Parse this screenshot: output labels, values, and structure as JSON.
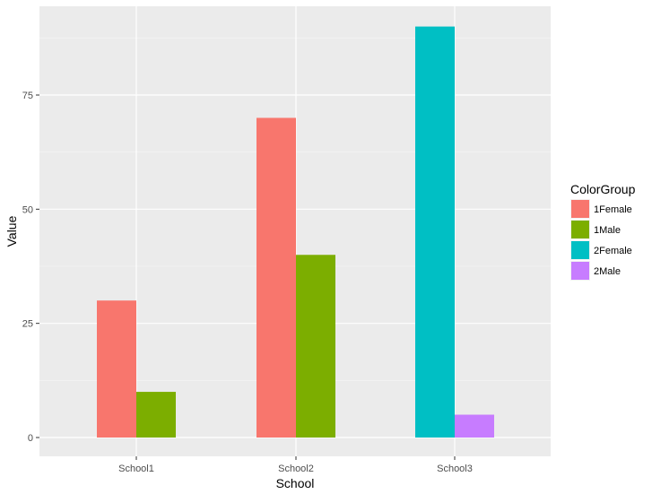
{
  "chart_data": {
    "type": "bar",
    "title": "",
    "xlabel": "School",
    "ylabel": "Value",
    "categories": [
      "School1",
      "School2",
      "School3"
    ],
    "ylim": [
      0,
      100
    ],
    "yticks": [
      0,
      25,
      50,
      75
    ],
    "grid": true,
    "legend": {
      "title": "ColorGroup",
      "placement": "right",
      "entries": [
        {
          "name": "1Female",
          "color": "#F8766D"
        },
        {
          "name": "1Male",
          "color": "#7CAE00"
        },
        {
          "name": "2Female",
          "color": "#00BFC4"
        },
        {
          "name": "2Male",
          "color": "#C77CFF"
        }
      ]
    },
    "bars": [
      {
        "category": "School1",
        "group": "1Female",
        "value": 30
      },
      {
        "category": "School1",
        "group": "1Male",
        "value": 10
      },
      {
        "category": "School2",
        "group": "1Female",
        "value": 70
      },
      {
        "category": "School2",
        "group": "1Male",
        "value": 40
      },
      {
        "category": "School3",
        "group": "2Female",
        "value": 90
      },
      {
        "category": "School3",
        "group": "2Male",
        "value": 5
      }
    ]
  },
  "colors": {
    "panel_background": "#EBEBEB",
    "grid_major": "#FFFFFF"
  }
}
